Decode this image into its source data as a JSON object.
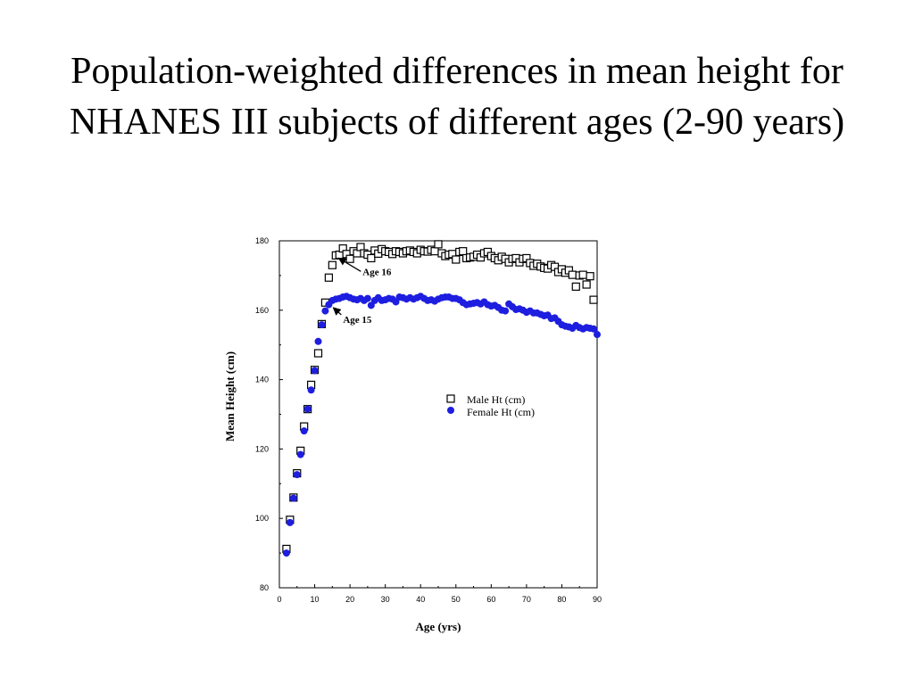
{
  "slide": {
    "title": "Population-weighted differences in mean height for NHANES III subjects of different ages (2-90 years)"
  },
  "chart_data": {
    "type": "scatter",
    "title": "",
    "xlabel": "Age (yrs)",
    "ylabel": "Mean Height (cm)",
    "xlim": [
      0,
      90
    ],
    "ylim": [
      80,
      180
    ],
    "xticks": [
      0,
      10,
      20,
      30,
      40,
      50,
      60,
      70,
      80,
      90
    ],
    "yticks": [
      80,
      100,
      120,
      140,
      160,
      180
    ],
    "grid": false,
    "legend": "center-right",
    "series": [
      {
        "name": "Male Ht (cm)",
        "marker": "open-square",
        "color": "#000000",
        "x": [
          2,
          3,
          4,
          5,
          6,
          7,
          8,
          9,
          10,
          11,
          12,
          13,
          14,
          15,
          16,
          17,
          18,
          19,
          20,
          21,
          22,
          23,
          24,
          25,
          26,
          27,
          28,
          29,
          30,
          31,
          32,
          33,
          34,
          35,
          36,
          37,
          38,
          39,
          40,
          41,
          42,
          43,
          44,
          45,
          46,
          47,
          48,
          49,
          50,
          51,
          52,
          53,
          54,
          55,
          56,
          57,
          58,
          59,
          60,
          61,
          62,
          63,
          64,
          65,
          66,
          67,
          68,
          69,
          70,
          71,
          72,
          73,
          74,
          75,
          76,
          77,
          78,
          79,
          80,
          81,
          82,
          83,
          84,
          85,
          86,
          87,
          88,
          89
        ],
        "y": [
          91.2,
          99.6,
          106.0,
          113.0,
          119.5,
          126.5,
          131.5,
          138.5,
          142.8,
          147.6,
          156.0,
          162.2,
          169.4,
          173.0,
          175.8,
          176.0,
          177.8,
          176.2,
          174.8,
          177.0,
          176.4,
          178.2,
          176.4,
          176.0,
          175.0,
          177.2,
          176.3,
          177.6,
          177.0,
          176.8,
          176.2,
          177.0,
          176.8,
          176.4,
          177.0,
          177.2,
          176.8,
          176.4,
          177.4,
          177.0,
          176.9,
          177.4,
          177.0,
          179.0,
          176.4,
          175.6,
          176.0,
          176.2,
          174.6,
          176.8,
          177.0,
          175.0,
          175.2,
          175.4,
          176.0,
          175.2,
          176.4,
          176.8,
          175.6,
          175.0,
          174.4,
          175.4,
          174.8,
          173.8,
          174.8,
          175.0,
          173.8,
          174.8,
          175.0,
          173.6,
          172.8,
          173.4,
          172.6,
          172.2,
          172.0,
          173.0,
          172.5,
          171.0,
          171.8,
          170.8,
          171.5,
          170.2,
          166.8,
          170.0,
          170.2,
          167.4,
          169.8,
          163.0
        ]
      },
      {
        "name": "Female Ht (cm)",
        "marker": "filled-circle",
        "color": "#1e1ee0",
        "x": [
          2,
          3,
          4,
          5,
          6,
          7,
          8,
          9,
          10,
          11,
          12,
          13,
          14,
          15,
          16,
          17,
          18,
          19,
          20,
          21,
          22,
          23,
          24,
          25,
          26,
          27,
          28,
          29,
          30,
          31,
          32,
          33,
          34,
          35,
          36,
          37,
          38,
          39,
          40,
          41,
          42,
          43,
          44,
          45,
          46,
          47,
          48,
          49,
          50,
          51,
          52,
          53,
          54,
          55,
          56,
          57,
          58,
          59,
          60,
          61,
          62,
          63,
          64,
          65,
          66,
          67,
          68,
          69,
          70,
          71,
          72,
          73,
          74,
          75,
          76,
          77,
          78,
          79,
          80,
          81,
          82,
          83,
          84,
          85,
          86,
          87,
          88,
          89,
          90
        ],
        "y": [
          90.0,
          98.8,
          105.8,
          112.6,
          118.4,
          125.2,
          131.5,
          137.0,
          142.6,
          151.0,
          155.8,
          159.8,
          161.6,
          162.8,
          163.2,
          163.4,
          163.8,
          164.0,
          163.6,
          163.2,
          163.0,
          163.4,
          162.8,
          163.4,
          161.4,
          162.8,
          163.6,
          162.8,
          163.0,
          163.4,
          163.2,
          162.4,
          163.8,
          163.6,
          163.2,
          163.6,
          163.2,
          163.6,
          164.0,
          163.4,
          162.8,
          163.0,
          162.6,
          163.2,
          163.6,
          163.8,
          163.8,
          163.4,
          163.4,
          163.0,
          162.2,
          161.6,
          161.8,
          162.0,
          162.2,
          161.8,
          162.4,
          161.6,
          161.2,
          161.4,
          160.8,
          160.0,
          159.8,
          161.8,
          161.0,
          160.2,
          160.4,
          160.0,
          159.4,
          159.8,
          159.2,
          159.2,
          158.8,
          158.4,
          158.6,
          157.6,
          157.8,
          156.8,
          155.8,
          155.4,
          155.2,
          154.8,
          155.6,
          155.0,
          154.6,
          155.0,
          154.8,
          154.6,
          153.0
        ]
      }
    ],
    "annotations": [
      {
        "text": "Age 16",
        "x": 16,
        "y": 175.8
      },
      {
        "text": "Age 15",
        "x": 15,
        "y": 162.8
      }
    ]
  }
}
